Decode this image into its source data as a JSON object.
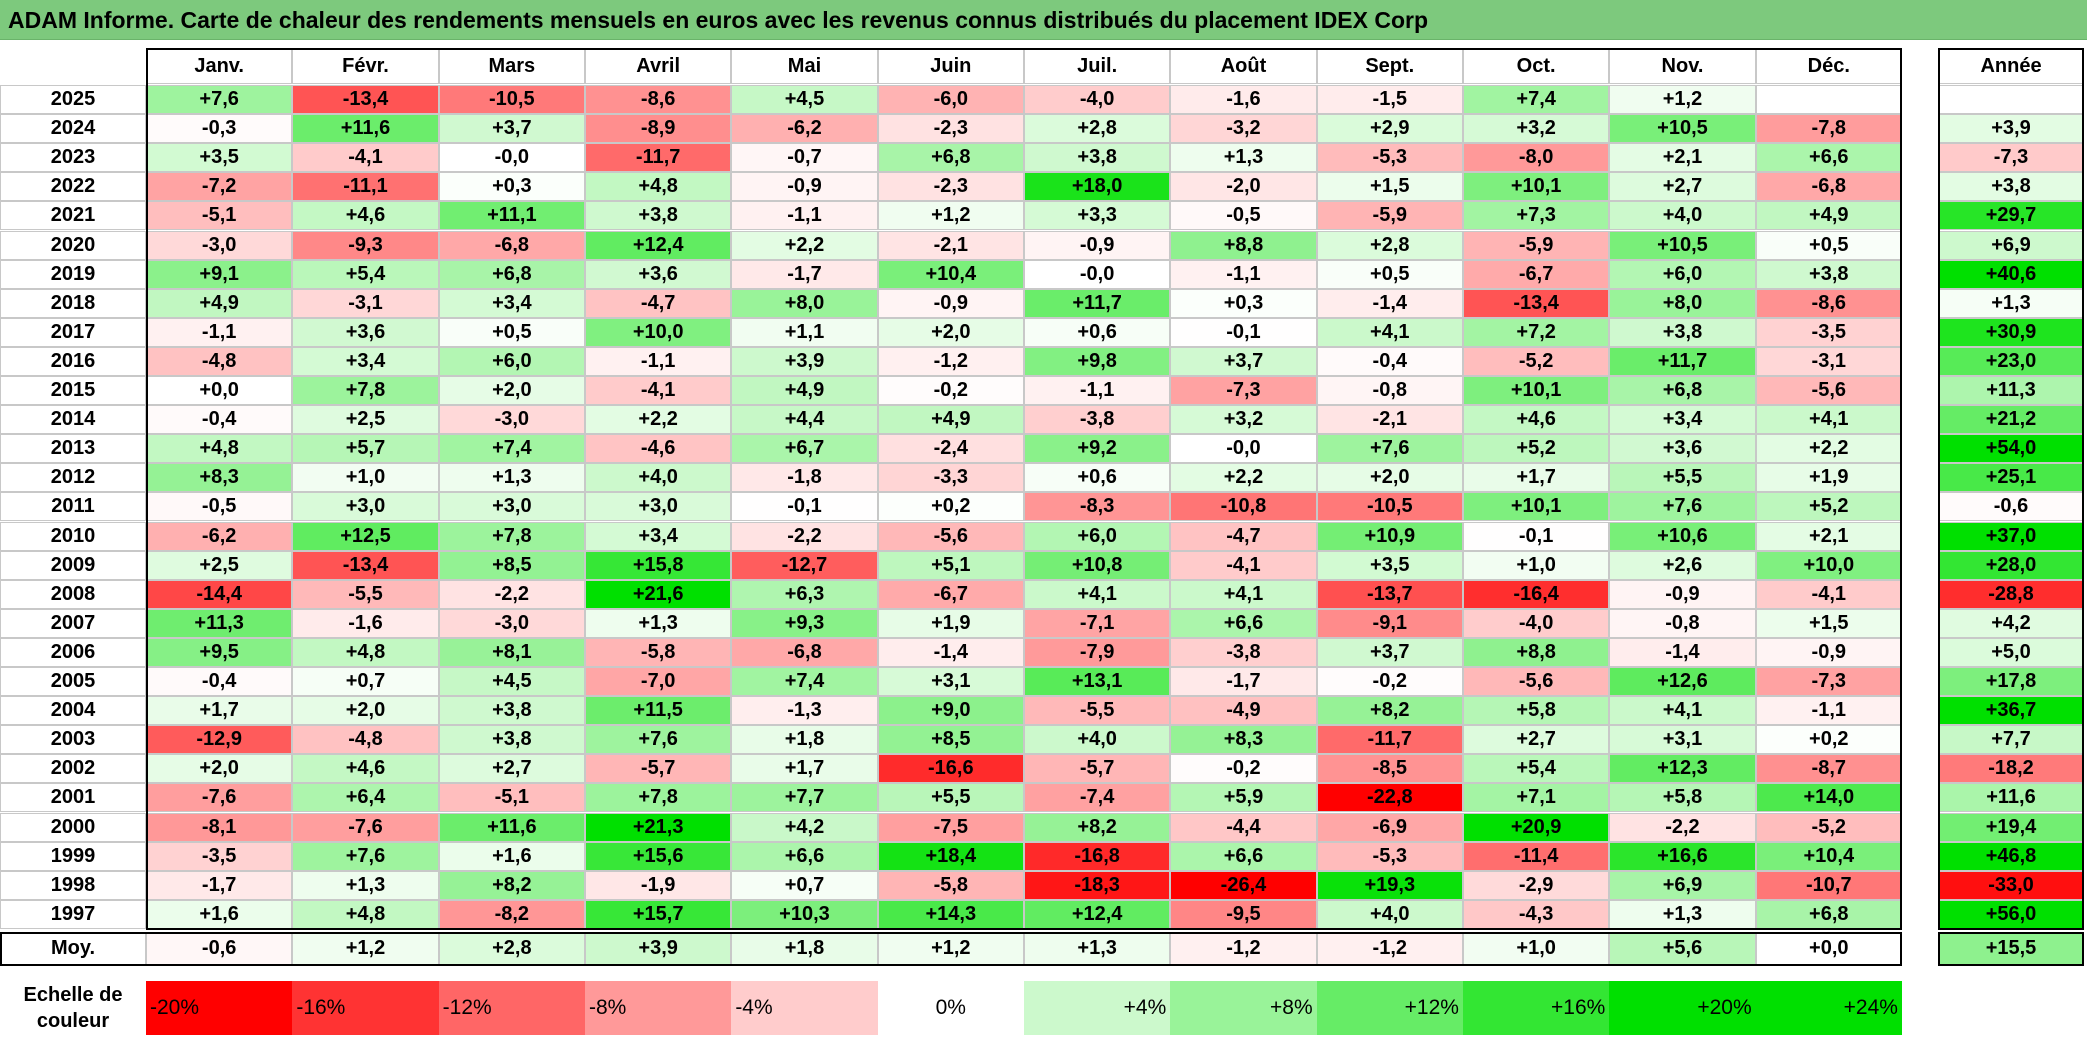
{
  "title": "ADAM Informe. Carte de chaleur des rendements mensuels en euros avec les revenus connus distribués du placement IDEX Corp",
  "chart_data": {
    "type": "heatmap",
    "columns": [
      "Janv.",
      "Févr.",
      "Mars",
      "Avril",
      "Mai",
      "Juin",
      "Juil.",
      "Août",
      "Sept.",
      "Oct.",
      "Nov.",
      "Déc."
    ],
    "annual_header": "Année",
    "rows": [
      {
        "year": "2025",
        "values": [
          "+7,6",
          "-13,4",
          "-10,5",
          "-8,6",
          "+4,5",
          "-6,0",
          "-4,0",
          "-1,6",
          "-1,5",
          "+7,4",
          "+1,2",
          ""
        ],
        "annual": ""
      },
      {
        "year": "2024",
        "values": [
          "-0,3",
          "+11,6",
          "+3,7",
          "-8,9",
          "-6,2",
          "-2,3",
          "+2,8",
          "-3,2",
          "+2,9",
          "+3,2",
          "+10,5",
          "-7,8"
        ],
        "annual": "+3,9"
      },
      {
        "year": "2023",
        "values": [
          "+3,5",
          "-4,1",
          "-0,0",
          "-11,7",
          "-0,7",
          "+6,8",
          "+3,8",
          "+1,3",
          "-5,3",
          "-8,0",
          "+2,1",
          "+6,6"
        ],
        "annual": "-7,3"
      },
      {
        "year": "2022",
        "values": [
          "-7,2",
          "-11,1",
          "+0,3",
          "+4,8",
          "-0,9",
          "-2,3",
          "+18,0",
          "-2,0",
          "+1,5",
          "+10,1",
          "+2,7",
          "-6,8"
        ],
        "annual": "+3,8"
      },
      {
        "year": "2021",
        "values": [
          "-5,1",
          "+4,6",
          "+11,1",
          "+3,8",
          "-1,1",
          "+1,2",
          "+3,3",
          "-0,5",
          "-5,9",
          "+7,3",
          "+4,0",
          "+4,9"
        ],
        "annual": "+29,7"
      },
      {
        "year": "2020",
        "values": [
          "-3,0",
          "-9,3",
          "-6,8",
          "+12,4",
          "+2,2",
          "-2,1",
          "-0,9",
          "+8,8",
          "+2,8",
          "-5,9",
          "+10,5",
          "+0,5"
        ],
        "annual": "+6,9"
      },
      {
        "year": "2019",
        "values": [
          "+9,1",
          "+5,4",
          "+6,8",
          "+3,6",
          "-1,7",
          "+10,4",
          "-0,0",
          "-1,1",
          "+0,5",
          "-6,7",
          "+6,0",
          "+3,8"
        ],
        "annual": "+40,6"
      },
      {
        "year": "2018",
        "values": [
          "+4,9",
          "-3,1",
          "+3,4",
          "-4,7",
          "+8,0",
          "-0,9",
          "+11,7",
          "+0,3",
          "-1,4",
          "-13,4",
          "+8,0",
          "-8,6"
        ],
        "annual": "+1,3"
      },
      {
        "year": "2017",
        "values": [
          "-1,1",
          "+3,6",
          "+0,5",
          "+10,0",
          "+1,1",
          "+2,0",
          "+0,6",
          "-0,1",
          "+4,1",
          "+7,2",
          "+3,8",
          "-3,5"
        ],
        "annual": "+30,9"
      },
      {
        "year": "2016",
        "values": [
          "-4,8",
          "+3,4",
          "+6,0",
          "-1,1",
          "+3,9",
          "-1,2",
          "+9,8",
          "+3,7",
          "-0,4",
          "-5,2",
          "+11,7",
          "-3,1"
        ],
        "annual": "+23,0"
      },
      {
        "year": "2015",
        "values": [
          "+0,0",
          "+7,8",
          "+2,0",
          "-4,1",
          "+4,9",
          "-0,2",
          "-1,1",
          "-7,3",
          "-0,8",
          "+10,1",
          "+6,8",
          "-5,6"
        ],
        "annual": "+11,3"
      },
      {
        "year": "2014",
        "values": [
          "-0,4",
          "+2,5",
          "-3,0",
          "+2,2",
          "+4,4",
          "+4,9",
          "-3,8",
          "+3,2",
          "-2,1",
          "+4,6",
          "+3,4",
          "+4,1"
        ],
        "annual": "+21,2"
      },
      {
        "year": "2013",
        "values": [
          "+4,8",
          "+5,7",
          "+7,4",
          "-4,6",
          "+6,7",
          "-2,4",
          "+9,2",
          "-0,0",
          "+7,6",
          "+5,2",
          "+3,6",
          "+2,2"
        ],
        "annual": "+54,0"
      },
      {
        "year": "2012",
        "values": [
          "+8,3",
          "+1,0",
          "+1,3",
          "+4,0",
          "-1,8",
          "-3,3",
          "+0,6",
          "+2,2",
          "+2,0",
          "+1,7",
          "+5,5",
          "+1,9"
        ],
        "annual": "+25,1"
      },
      {
        "year": "2011",
        "values": [
          "-0,5",
          "+3,0",
          "+3,0",
          "+3,0",
          "-0,1",
          "+0,2",
          "-8,3",
          "-10,8",
          "-10,5",
          "+10,1",
          "+7,6",
          "+5,2"
        ],
        "annual": "-0,6"
      },
      {
        "year": "2010",
        "values": [
          "-6,2",
          "+12,5",
          "+7,8",
          "+3,4",
          "-2,2",
          "-5,6",
          "+6,0",
          "-4,7",
          "+10,9",
          "-0,1",
          "+10,6",
          "+2,1"
        ],
        "annual": "+37,0"
      },
      {
        "year": "2009",
        "values": [
          "+2,5",
          "-13,4",
          "+8,5",
          "+15,8",
          "-12,7",
          "+5,1",
          "+10,8",
          "-4,1",
          "+3,5",
          "+1,0",
          "+2,6",
          "+10,0"
        ],
        "annual": "+28,0"
      },
      {
        "year": "2008",
        "values": [
          "-14,4",
          "-5,5",
          "-2,2",
          "+21,6",
          "+6,3",
          "-6,7",
          "+4,1",
          "+4,1",
          "-13,7",
          "-16,4",
          "-0,9",
          "-4,1"
        ],
        "annual": "-28,8"
      },
      {
        "year": "2007",
        "values": [
          "+11,3",
          "-1,6",
          "-3,0",
          "+1,3",
          "+9,3",
          "+1,9",
          "-7,1",
          "+6,6",
          "-9,1",
          "-4,0",
          "-0,8",
          "+1,5"
        ],
        "annual": "+4,2"
      },
      {
        "year": "2006",
        "values": [
          "+9,5",
          "+4,8",
          "+8,1",
          "-5,8",
          "-6,8",
          "-1,4",
          "-7,9",
          "-3,8",
          "+3,7",
          "+8,8",
          "-1,4",
          "-0,9"
        ],
        "annual": "+5,0"
      },
      {
        "year": "2005",
        "values": [
          "-0,4",
          "+0,7",
          "+4,5",
          "-7,0",
          "+7,4",
          "+3,1",
          "+13,1",
          "-1,7",
          "-0,2",
          "-5,6",
          "+12,6",
          "-7,3"
        ],
        "annual": "+17,8"
      },
      {
        "year": "2004",
        "values": [
          "+1,7",
          "+2,0",
          "+3,8",
          "+11,5",
          "-1,3",
          "+9,0",
          "-5,5",
          "-4,9",
          "+8,2",
          "+5,8",
          "+4,1",
          "-1,1"
        ],
        "annual": "+36,7"
      },
      {
        "year": "2003",
        "values": [
          "-12,9",
          "-4,8",
          "+3,8",
          "+7,6",
          "+1,8",
          "+8,5",
          "+4,0",
          "+8,3",
          "-11,7",
          "+2,7",
          "+3,1",
          "+0,2"
        ],
        "annual": "+7,7"
      },
      {
        "year": "2002",
        "values": [
          "+2,0",
          "+4,6",
          "+2,7",
          "-5,7",
          "+1,7",
          "-16,6",
          "-5,7",
          "-0,2",
          "-8,5",
          "+5,4",
          "+12,3",
          "-8,7"
        ],
        "annual": "-18,2"
      },
      {
        "year": "2001",
        "values": [
          "-7,6",
          "+6,4",
          "-5,1",
          "+7,8",
          "+7,7",
          "+5,5",
          "-7,4",
          "+5,9",
          "-22,8",
          "+7,1",
          "+5,8",
          "+14,0"
        ],
        "annual": "+11,6"
      },
      {
        "year": "2000",
        "values": [
          "-8,1",
          "-7,6",
          "+11,6",
          "+21,3",
          "+4,2",
          "-7,5",
          "+8,2",
          "-4,4",
          "-6,9",
          "+20,9",
          "-2,2",
          "-5,2"
        ],
        "annual": "+19,4"
      },
      {
        "year": "1999",
        "values": [
          "-3,5",
          "+7,6",
          "+1,6",
          "+15,6",
          "+6,6",
          "+18,4",
          "-16,8",
          "+6,6",
          "-5,3",
          "-11,4",
          "+16,6",
          "+10,4"
        ],
        "annual": "+46,8"
      },
      {
        "year": "1998",
        "values": [
          "-1,7",
          "+1,3",
          "+8,2",
          "-1,9",
          "+0,7",
          "-5,8",
          "-18,3",
          "-26,4",
          "+19,3",
          "-2,9",
          "+6,9",
          "-10,7"
        ],
        "annual": "-33,0"
      },
      {
        "year": "1997",
        "values": [
          "+1,6",
          "+4,8",
          "-8,2",
          "+15,7",
          "+10,3",
          "+14,3",
          "+12,4",
          "-9,5",
          "+4,0",
          "-4,3",
          "+1,3",
          "+6,8"
        ],
        "annual": "+56,0"
      }
    ],
    "average": {
      "label": "Moy.",
      "values": [
        "-0,6",
        "+1,2",
        "+2,8",
        "+3,9",
        "+1,8",
        "+1,2",
        "+1,3",
        "-1,2",
        "-1,2",
        "+1,0",
        "+5,6",
        "+0,0"
      ],
      "annual": "+15,5"
    },
    "scale": {
      "label_line1": "Echelle de",
      "label_line2": "couleur",
      "steps": [
        "-20%",
        "-16%",
        "-12%",
        "-8%",
        "-4%",
        "0%",
        "+4%",
        "+8%",
        "+12%",
        "+16%",
        "+20%",
        "+24%"
      ]
    },
    "colors": {
      "negative": "#ff0000",
      "neutral": "#ffffff",
      "positive": "#00e000"
    }
  }
}
